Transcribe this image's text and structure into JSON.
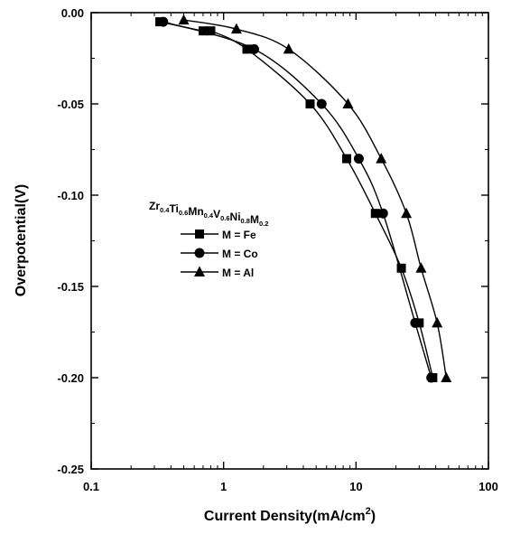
{
  "chart_data": {
    "type": "scatter",
    "xlabel": "Current Density(mA/cm",
    "xlabel_sup": "2",
    "xlabel_end": ")",
    "ylabel": "Overpotential(V)",
    "x_scale": "log",
    "xlim": [
      0.1,
      100
    ],
    "ylim": [
      -0.25,
      0.0
    ],
    "x_ticks": [
      {
        "value": 0.1,
        "label": "0.1"
      },
      {
        "value": 1,
        "label": "1"
      },
      {
        "value": 10,
        "label": "10"
      },
      {
        "value": 100,
        "label": "100"
      }
    ],
    "y_ticks": [
      {
        "value": 0.0,
        "label": "0.00"
      },
      {
        "value": -0.05,
        "label": "-0.05"
      },
      {
        "value": -0.1,
        "label": "-0.10"
      },
      {
        "value": -0.15,
        "label": "-0.15"
      },
      {
        "value": -0.2,
        "label": "-0.20"
      },
      {
        "value": -0.25,
        "label": "-0.25"
      }
    ],
    "grid": false,
    "legend_position": "center-left",
    "legend_title": {
      "parts": [
        {
          "text": "Zr",
          "sub": "0.4"
        },
        {
          "text": "Ti",
          "sub": "0.6"
        },
        {
          "text": "Mn",
          "sub": "0.4"
        },
        {
          "text": "V",
          "sub": "0.6"
        },
        {
          "text": "Ni",
          "sub": "0.8"
        },
        {
          "text": "M",
          "sub": "0.2"
        }
      ]
    },
    "series": [
      {
        "name": "M = Fe",
        "marker": "square",
        "x": [
          0.33,
          0.7,
          0.8,
          1.5,
          4.5,
          8.5,
          14,
          22,
          30,
          38
        ],
        "y": [
          -0.005,
          -0.01,
          -0.01,
          -0.02,
          -0.05,
          -0.08,
          -0.11,
          -0.14,
          -0.17,
          -0.2
        ]
      },
      {
        "name": "M = Co",
        "marker": "circle",
        "x": [
          0.35,
          1.7,
          5.5,
          10.5,
          16,
          28,
          37
        ],
        "y": [
          -0.005,
          -0.02,
          -0.05,
          -0.08,
          -0.11,
          -0.17,
          -0.2
        ]
      },
      {
        "name": "M = Al",
        "marker": "triangle",
        "x": [
          0.5,
          1.25,
          3.1,
          8.7,
          15.5,
          24,
          31,
          41,
          48
        ],
        "y": [
          -0.004,
          -0.009,
          -0.02,
          -0.05,
          -0.08,
          -0.11,
          -0.14,
          -0.17,
          -0.2
        ]
      }
    ]
  }
}
